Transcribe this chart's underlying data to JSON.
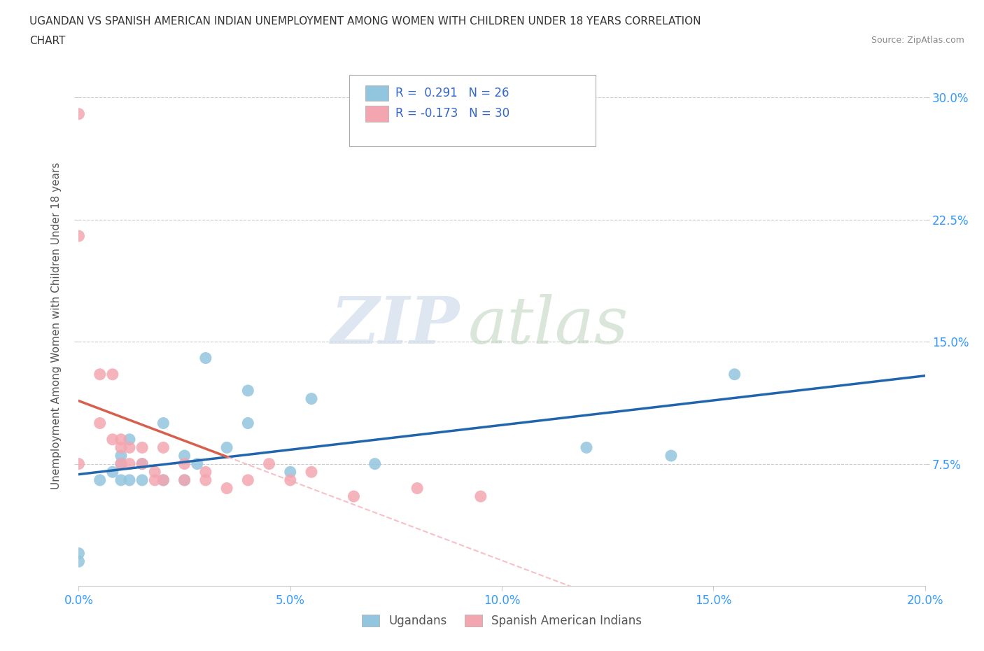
{
  "title_line1": "UGANDAN VS SPANISH AMERICAN INDIAN UNEMPLOYMENT AMONG WOMEN WITH CHILDREN UNDER 18 YEARS CORRELATION",
  "title_line2": "CHART",
  "source_text": "Source: ZipAtlas.com",
  "ylabel": "Unemployment Among Women with Children Under 18 years",
  "xlabel_ticks": [
    "0.0%",
    "5.0%",
    "10.0%",
    "15.0%",
    "20.0%"
  ],
  "ylabel_ticks": [
    "7.5%",
    "15.0%",
    "22.5%",
    "30.0%"
  ],
  "xlim": [
    0.0,
    0.2
  ],
  "ylim": [
    0.0,
    0.32
  ],
  "watermark_zip": "ZIP",
  "watermark_atlas": "atlas",
  "ugandan_color": "#92C5DE",
  "spanish_color": "#F4A6B0",
  "ugandan_line_color": "#2166AC",
  "spanish_line_color": "#D6604D",
  "spanish_line_dash_color": "#F4A6B0",
  "background_color": "#FFFFFF",
  "grid_color": "#CCCCCC",
  "ugandan_scatter_x": [
    0.0,
    0.0,
    0.005,
    0.008,
    0.01,
    0.01,
    0.01,
    0.012,
    0.012,
    0.015,
    0.015,
    0.02,
    0.02,
    0.025,
    0.025,
    0.028,
    0.03,
    0.035,
    0.04,
    0.04,
    0.05,
    0.055,
    0.07,
    0.12,
    0.14,
    0.155
  ],
  "ugandan_scatter_y": [
    0.02,
    0.015,
    0.065,
    0.07,
    0.065,
    0.08,
    0.075,
    0.09,
    0.065,
    0.075,
    0.065,
    0.065,
    0.1,
    0.08,
    0.065,
    0.075,
    0.14,
    0.085,
    0.12,
    0.1,
    0.07,
    0.115,
    0.075,
    0.085,
    0.08,
    0.13
  ],
  "spanish_scatter_x": [
    0.0,
    0.0,
    0.0,
    0.005,
    0.005,
    0.008,
    0.008,
    0.01,
    0.01,
    0.01,
    0.012,
    0.012,
    0.015,
    0.015,
    0.018,
    0.018,
    0.02,
    0.02,
    0.025,
    0.025,
    0.03,
    0.03,
    0.035,
    0.04,
    0.045,
    0.05,
    0.055,
    0.065,
    0.08,
    0.095
  ],
  "spanish_scatter_y": [
    0.29,
    0.215,
    0.075,
    0.13,
    0.1,
    0.13,
    0.09,
    0.085,
    0.09,
    0.075,
    0.085,
    0.075,
    0.085,
    0.075,
    0.07,
    0.065,
    0.085,
    0.065,
    0.075,
    0.065,
    0.07,
    0.065,
    0.06,
    0.065,
    0.075,
    0.065,
    0.07,
    0.055,
    0.06,
    0.055
  ]
}
